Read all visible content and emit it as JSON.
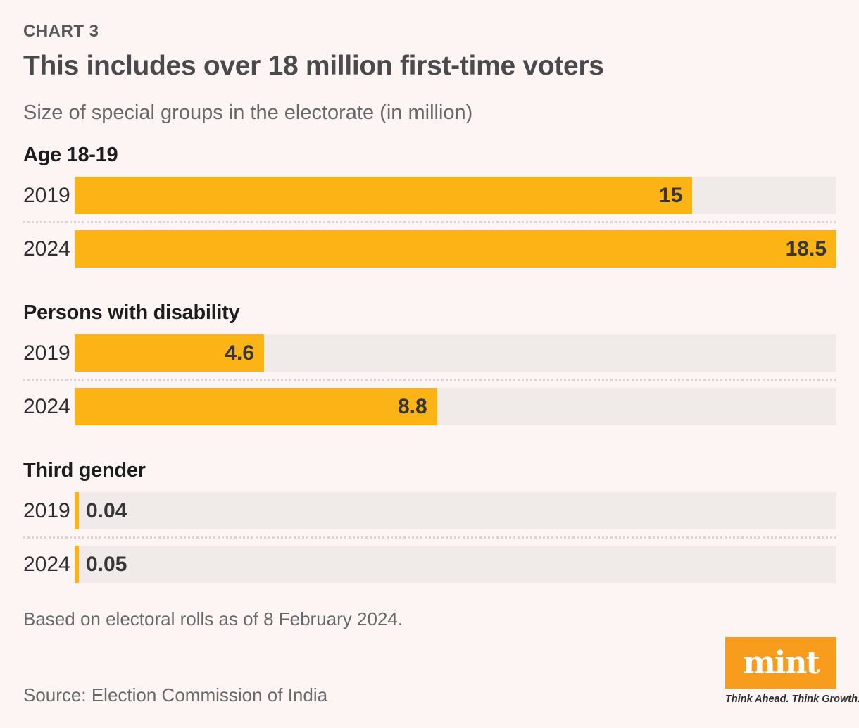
{
  "page": {
    "kicker": "CHART 3",
    "title": "This includes over 18 million first-time voters",
    "subtitle": "Size of special groups in the electorate (in million)",
    "note": "Based on electoral rolls as of 8 February 2024.",
    "source": "Source: Election Commission of India"
  },
  "branding": {
    "logo_text": "mint",
    "tagline": "Think Ahead. Think Growth."
  },
  "colors": {
    "background": "#fcf5f4",
    "bar": "#fcb316",
    "track": "#f0ebe9",
    "logo_orange": "#f89c1e"
  },
  "chart_data": {
    "type": "bar",
    "orientation": "horizontal",
    "title": "This includes over 18 million first-time voters",
    "subtitle": "Size of special groups in the electorate (in million)",
    "unit": "million",
    "xlim": [
      0,
      18.5
    ],
    "grid": false,
    "legend": "none",
    "groups": [
      {
        "label": "Age 18-19",
        "rows": [
          {
            "year": "2019",
            "value": 15,
            "display": "15",
            "label_position": "inside-end"
          },
          {
            "year": "2024",
            "value": 18.5,
            "display": "18.5",
            "label_position": "inside-end"
          }
        ]
      },
      {
        "label": "Persons with disability",
        "rows": [
          {
            "year": "2019",
            "value": 4.6,
            "display": "4.6",
            "label_position": "inside-end"
          },
          {
            "year": "2024",
            "value": 8.8,
            "display": "8.8",
            "label_position": "inside-end"
          }
        ]
      },
      {
        "label": "Third gender",
        "rows": [
          {
            "year": "2019",
            "value": 0.04,
            "display": "0.04",
            "label_position": "after-start"
          },
          {
            "year": "2024",
            "value": 0.05,
            "display": "0.05",
            "label_position": "after-start"
          }
        ]
      }
    ]
  }
}
